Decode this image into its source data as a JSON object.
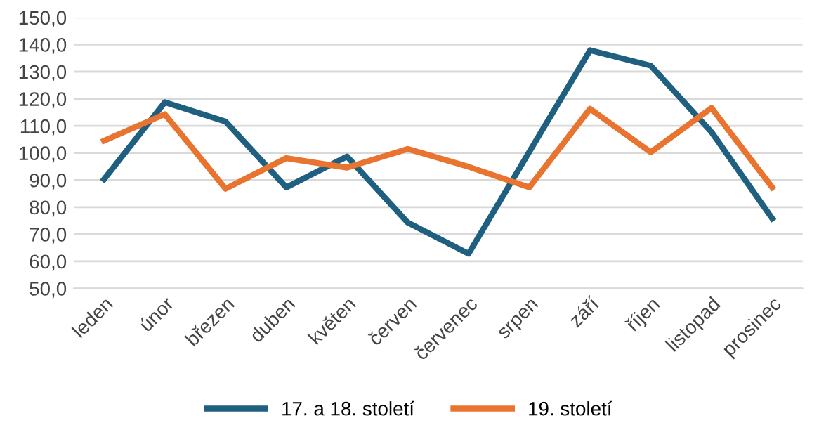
{
  "chart_data": {
    "type": "line",
    "categories": [
      "leden",
      "únor",
      "březen",
      "duben",
      "květen",
      "červen",
      "červenec",
      "srpen",
      "září",
      "říjen",
      "listopad",
      "prosinec"
    ],
    "series": [
      {
        "name": "17. a 18. století",
        "color": "#1f5f7f",
        "values": [
          90.3,
          118.7,
          111.6,
          87.3,
          98.7,
          74.3,
          62.8,
          100.4,
          137.9,
          132.2,
          107.7,
          75.8
        ]
      },
      {
        "name": "19. století",
        "color": "#e8742f",
        "values": [
          104.5,
          114.3,
          86.8,
          98.1,
          94.6,
          101.5,
          94.9,
          87.3,
          116.3,
          100.3,
          116.6,
          87.3
        ]
      }
    ],
    "ylim": [
      50,
      150
    ],
    "yticks": [
      {
        "value": 50,
        "label": "50,0"
      },
      {
        "value": 60,
        "label": "60,0"
      },
      {
        "value": 70,
        "label": "70,0"
      },
      {
        "value": 80,
        "label": "80,0"
      },
      {
        "value": 90,
        "label": "90,0"
      },
      {
        "value": 100,
        "label": "100,0"
      },
      {
        "value": 110,
        "label": "110,0"
      },
      {
        "value": 120,
        "label": "120,0"
      },
      {
        "value": 130,
        "label": "130,0"
      },
      {
        "value": 140,
        "label": "140,0"
      },
      {
        "value": 150,
        "label": "150,0"
      }
    ],
    "grid": "y",
    "legend": "bottom",
    "marker": "none",
    "line_style": "solid"
  }
}
